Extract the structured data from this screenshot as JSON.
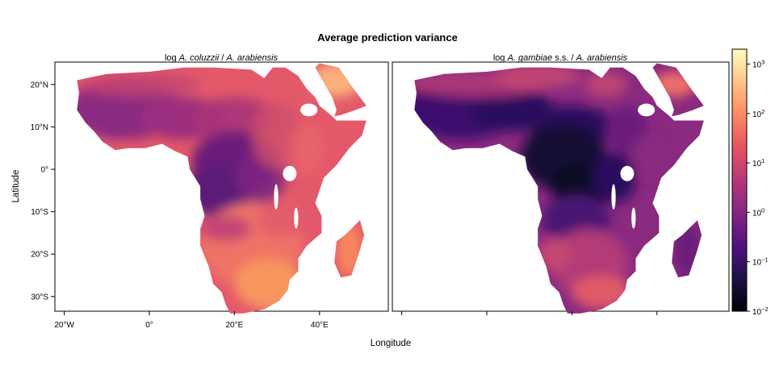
{
  "chart_data": {
    "type": "heatmap",
    "title": "Average prediction variance",
    "xlabel": "Longitude",
    "ylabel": "Latitude",
    "panels": [
      {
        "strip_parts": [
          "log ",
          "A. coluzzii",
          " / ",
          "A. arabiensis"
        ],
        "description_level": "higher variance overall"
      },
      {
        "strip_parts": [
          "log ",
          "A. gambiae",
          " s.s. / ",
          "A. arabiensis"
        ],
        "description_level": "lower variance in central Africa"
      }
    ],
    "x_ticks": [
      {
        "value": -20,
        "label": "20°W"
      },
      {
        "value": 0,
        "label": "0°"
      },
      {
        "value": 20,
        "label": "20°E"
      },
      {
        "value": 40,
        "label": "40°E"
      }
    ],
    "y_ticks": [
      {
        "value": 20,
        "label": "20°N"
      },
      {
        "value": 10,
        "label": "10°N"
      },
      {
        "value": 0,
        "label": "0°"
      },
      {
        "value": -10,
        "label": "10°S"
      },
      {
        "value": -20,
        "label": "20°S"
      },
      {
        "value": -30,
        "label": "30°S"
      }
    ],
    "xlim": [
      -22,
      54
    ],
    "ylim": [
      -33,
      25
    ],
    "colorbar": {
      "scale": "log10",
      "range": [
        0.01,
        2000
      ],
      "ticks": [
        {
          "base": "10",
          "exp": "3",
          "value": 1000
        },
        {
          "base": "10",
          "exp": "2",
          "value": 100
        },
        {
          "base": "10",
          "exp": "1",
          "value": 10
        },
        {
          "base": "10",
          "exp": "0",
          "value": 1
        },
        {
          "base": "10",
          "exp": "−1",
          "value": 0.1
        },
        {
          "base": "10",
          "exp": "−2",
          "value": 0.01
        }
      ],
      "palette": [
        "#000004",
        "#1d1147",
        "#51127c",
        "#832681",
        "#b73779",
        "#e75263",
        "#fc8961",
        "#fec488",
        "#fcfdbf"
      ]
    }
  }
}
